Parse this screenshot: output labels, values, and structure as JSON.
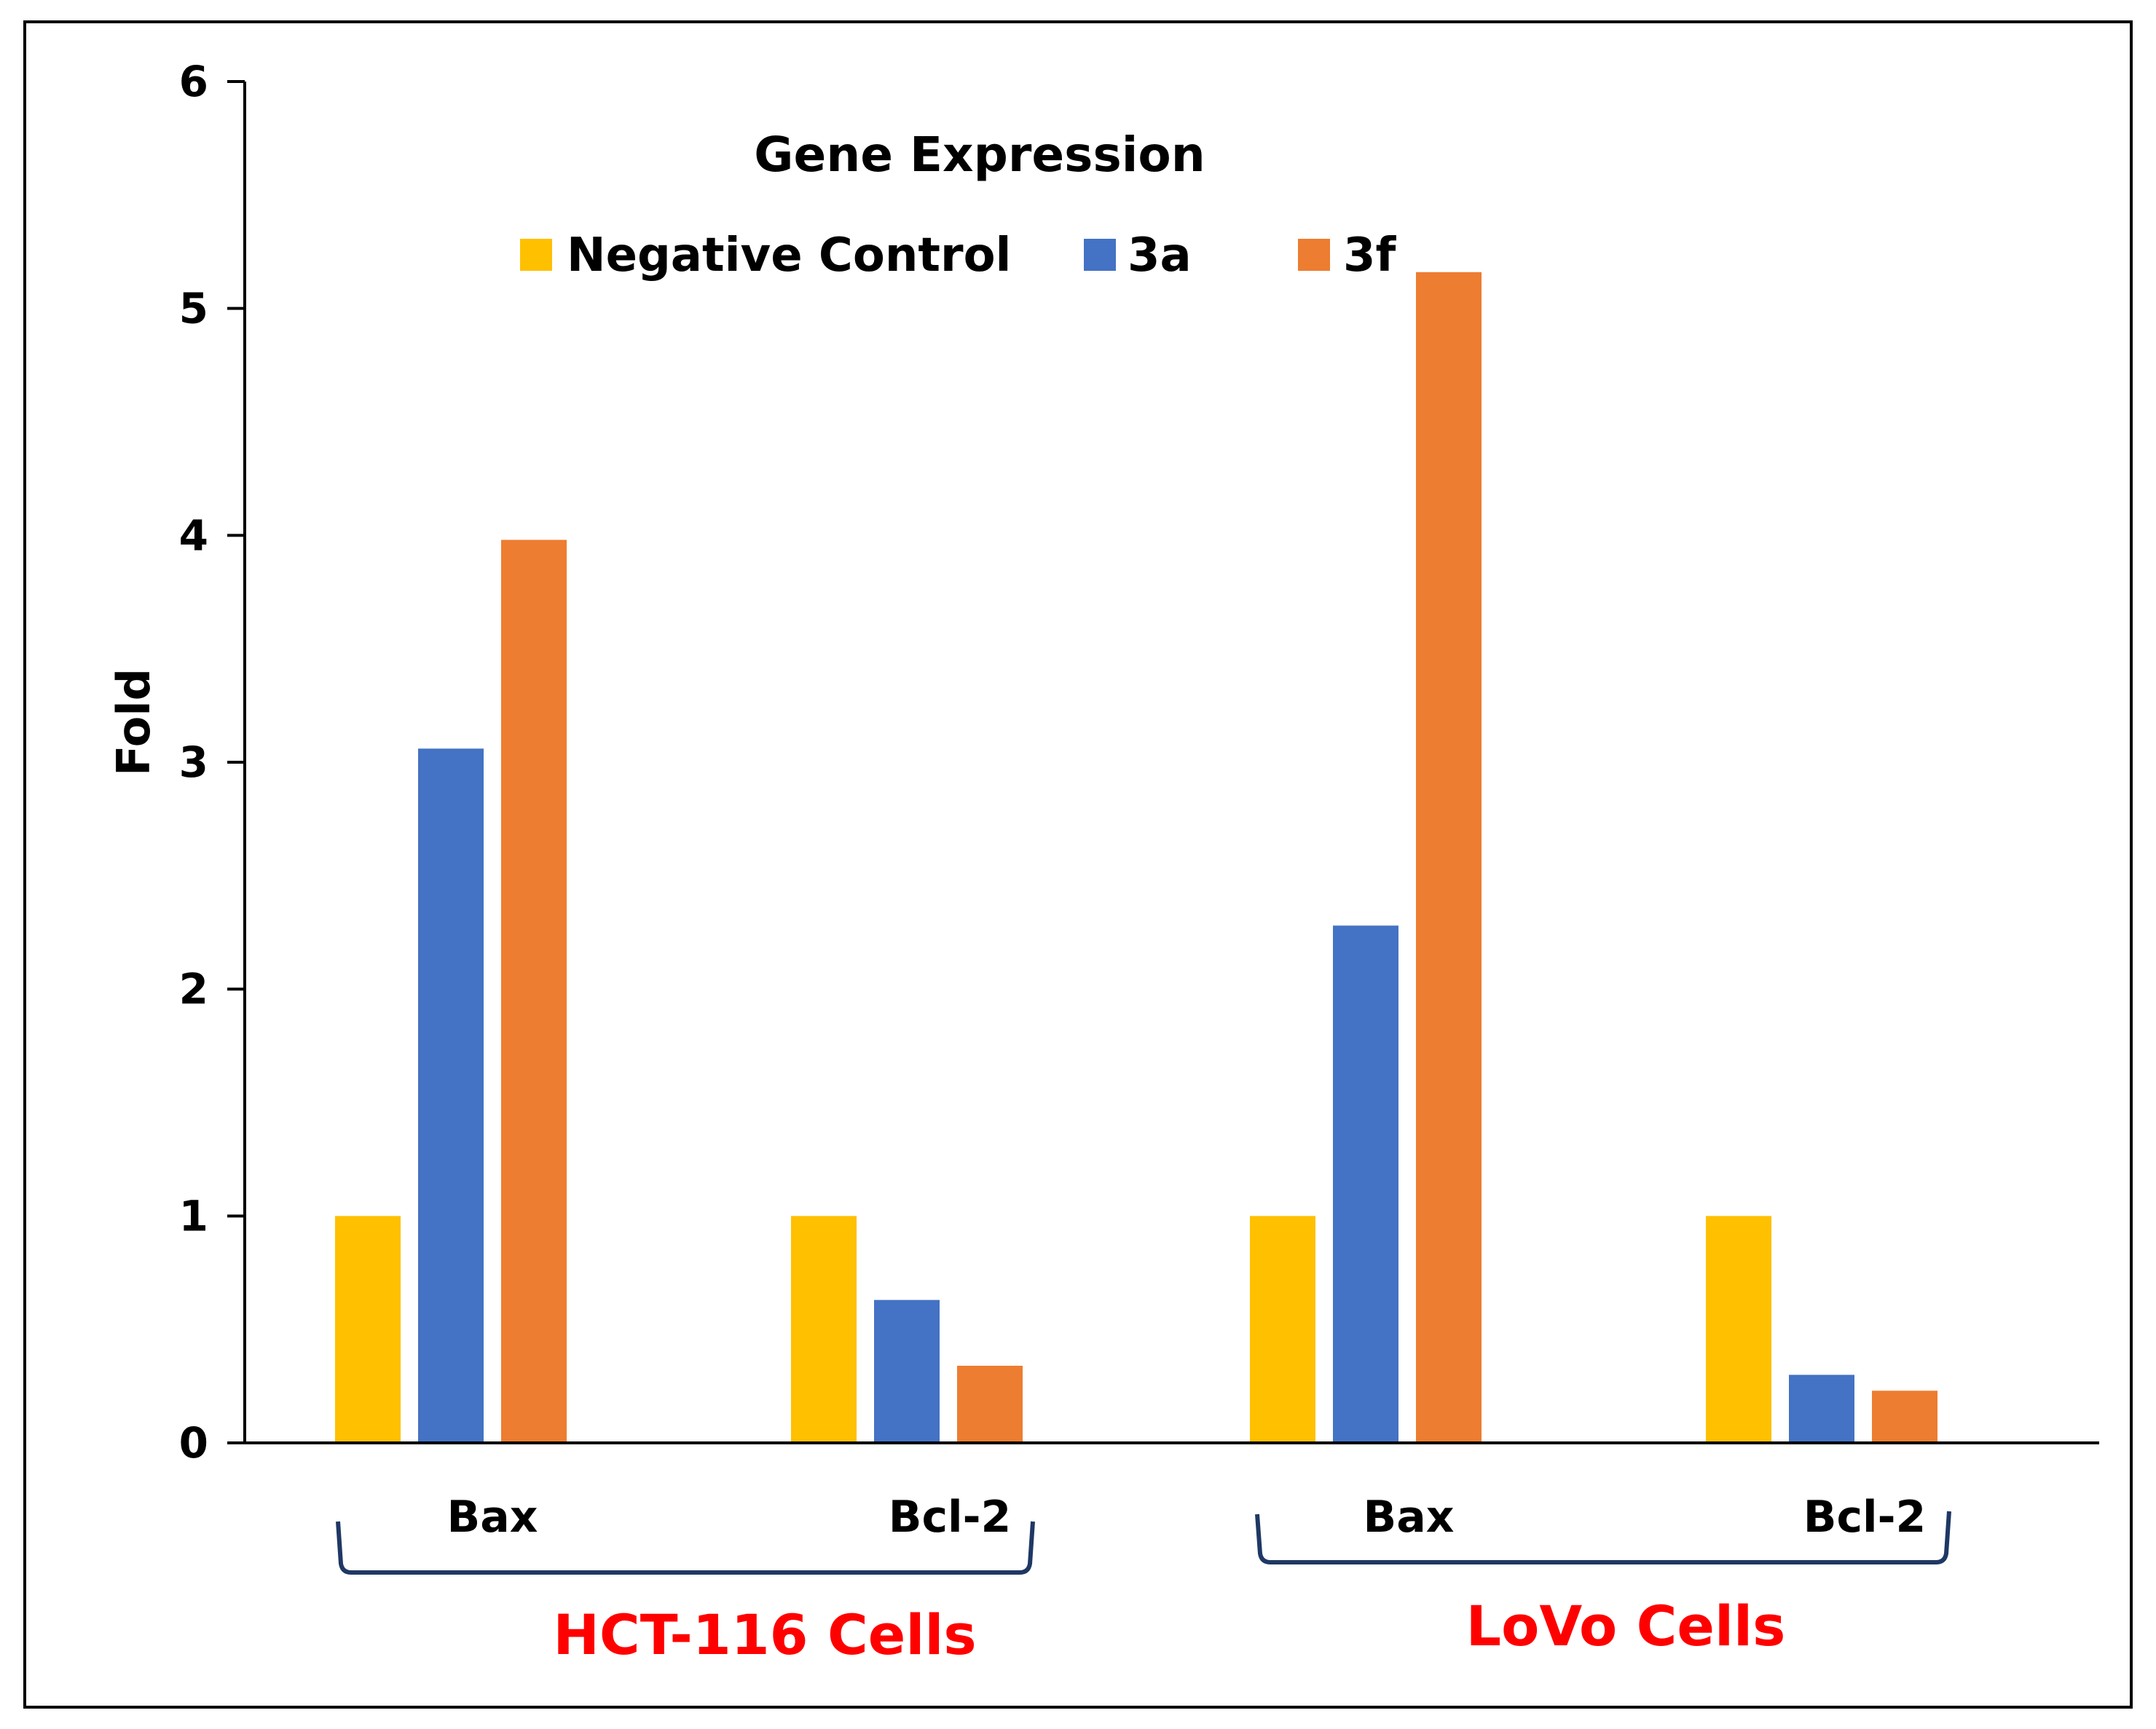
{
  "chart_data": {
    "type": "bar",
    "title": "Gene Expression",
    "ylabel": "Fold",
    "xlabel": "",
    "ylim": [
      0,
      6
    ],
    "yticks": [
      "0",
      "1",
      "2",
      "3",
      "4",
      "5",
      "6"
    ],
    "categories": [
      "Bax",
      "Bcl-2",
      "Bax",
      "Bcl-2"
    ],
    "groups": [
      {
        "label": "HCT-116 Cells",
        "categories": [
          "Bax",
          "Bcl-2"
        ],
        "color": "#ff0000"
      },
      {
        "label": "LoVo Cells",
        "categories": [
          "Bax",
          "Bcl-2"
        ],
        "color": "#ff0000"
      }
    ],
    "series": [
      {
        "name": "Negative Control",
        "color": "#ffc000",
        "values": [
          1,
          1,
          1,
          1
        ]
      },
      {
        "name": "3a",
        "color": "#4472c4",
        "values": [
          3.06,
          0.63,
          2.28,
          0.3
        ]
      },
      {
        "name": "3f",
        "color": "#ed7d31",
        "values": [
          3.98,
          0.34,
          5.16,
          0.23
        ]
      }
    ],
    "legend_position": "top",
    "grid": false
  }
}
